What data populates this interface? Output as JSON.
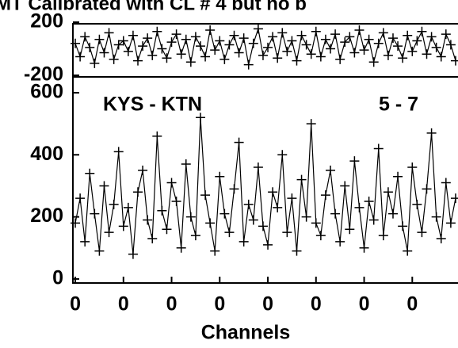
{
  "chart_data": [
    {
      "type": "scatter",
      "title": "MT  Calibrated with CL # 4 but no b",
      "x": [
        0,
        10,
        20,
        30,
        40,
        50,
        60,
        70,
        80,
        90,
        100,
        110,
        120,
        130,
        140,
        150,
        160,
        170,
        180,
        190,
        200,
        210,
        220,
        230,
        240,
        250,
        260,
        270,
        280,
        290,
        300,
        310,
        320,
        330,
        340,
        350,
        360,
        370,
        380,
        390,
        400,
        410,
        420,
        430,
        440,
        450,
        460,
        470,
        480,
        490,
        500,
        510,
        520,
        530,
        540,
        550,
        560,
        570,
        580,
        590,
        600,
        610,
        620,
        630,
        640,
        650,
        660,
        670,
        680,
        690,
        700,
        710,
        720,
        730,
        740,
        750,
        760,
        770,
        780,
        790
      ],
      "values": [
        40,
        -60,
        90,
        10,
        -110,
        70,
        -30,
        120,
        -80,
        30,
        60,
        -20,
        100,
        -90,
        20,
        80,
        -50,
        130,
        0,
        -70,
        50,
        110,
        -40,
        70,
        -100,
        90,
        20,
        -60,
        140,
        -10,
        60,
        -80,
        30,
        100,
        -30,
        80,
        -120,
        40,
        150,
        -50,
        10,
        90,
        -70,
        120,
        -20,
        60,
        -90,
        100,
        30,
        -40,
        130,
        -60,
        70,
        0,
        110,
        -80,
        50,
        90,
        -30,
        140,
        -10,
        70,
        -100,
        40,
        120,
        -50,
        80,
        20,
        -70,
        100,
        -20,
        60,
        130,
        -40,
        90,
        10,
        -60,
        110,
        30,
        -90
      ],
      "color": "#000000",
      "xlim": [
        -5,
        795
      ],
      "ylim": [
        -212,
        188
      ],
      "yticks": [
        -200,
        200
      ]
    },
    {
      "type": "scatter",
      "xlabel": "Channels",
      "annotations": [
        "KYS - KTN",
        "5 - 7"
      ],
      "x": [
        0,
        10,
        20,
        30,
        40,
        50,
        60,
        70,
        80,
        90,
        100,
        110,
        120,
        130,
        140,
        150,
        160,
        170,
        180,
        190,
        200,
        210,
        220,
        230,
        240,
        250,
        260,
        270,
        280,
        290,
        300,
        310,
        320,
        330,
        340,
        350,
        360,
        370,
        380,
        390,
        400,
        410,
        420,
        430,
        440,
        450,
        460,
        470,
        480,
        490,
        500,
        510,
        520,
        530,
        540,
        550,
        560,
        570,
        580,
        590,
        600,
        610,
        620,
        630,
        640,
        650,
        660,
        670,
        680,
        690,
        700,
        710,
        720,
        730,
        740,
        750,
        760,
        770,
        780,
        790
      ],
      "values": [
        180,
        260,
        120,
        340,
        210,
        90,
        300,
        150,
        240,
        410,
        170,
        230,
        80,
        280,
        350,
        190,
        130,
        460,
        220,
        160,
        310,
        250,
        100,
        370,
        200,
        140,
        520,
        270,
        180,
        90,
        330,
        210,
        150,
        290,
        440,
        120,
        240,
        190,
        360,
        170,
        110,
        280,
        230,
        400,
        150,
        260,
        90,
        320,
        200,
        500,
        180,
        140,
        270,
        350,
        210,
        120,
        300,
        160,
        380,
        230,
        100,
        250,
        190,
        420,
        140,
        280,
        210,
        330,
        170,
        90,
        360,
        240,
        150,
        290,
        470,
        200,
        130,
        310,
        180,
        260
      ],
      "color": "#000000",
      "xlim": [
        -5,
        795
      ],
      "ylim": [
        -13,
        651
      ],
      "xticks": [
        {
          "value": 0,
          "label": "0"
        },
        {
          "value": 100,
          "label": "0"
        },
        {
          "value": 200,
          "label": "0"
        },
        {
          "value": 300,
          "label": "0"
        },
        {
          "value": 400,
          "label": "0"
        },
        {
          "value": 500,
          "label": "0"
        },
        {
          "value": 600,
          "label": "0"
        },
        {
          "value": 700,
          "label": "0"
        }
      ],
      "yticks": [
        0,
        200,
        400,
        600
      ]
    }
  ]
}
